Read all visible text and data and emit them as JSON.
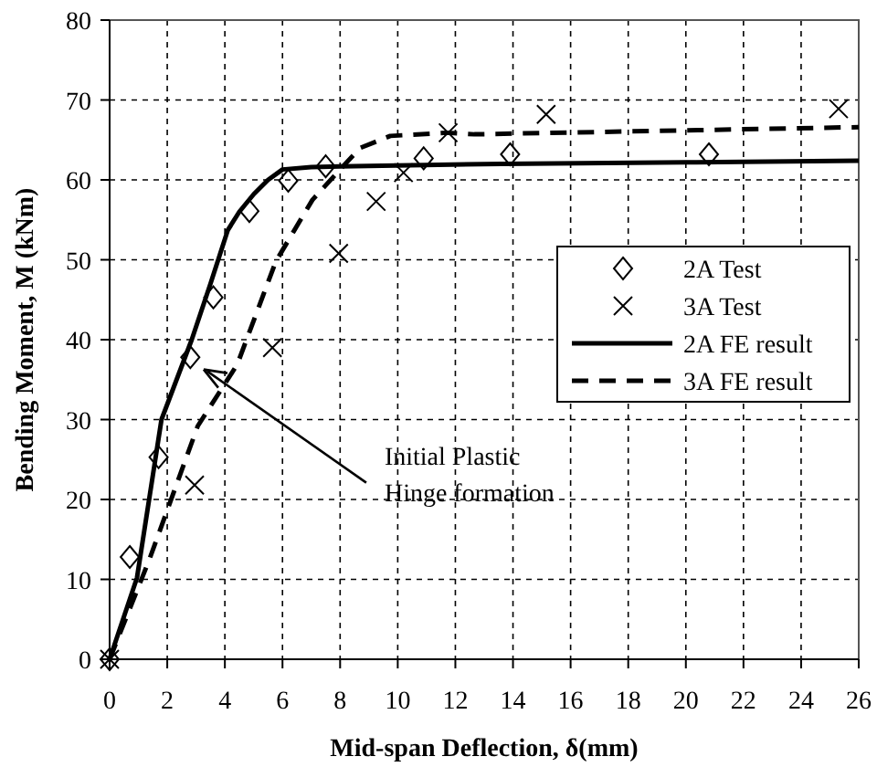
{
  "chart_data": {
    "type": "scatter",
    "xlabel": "Mid-span Deflection, δ(mm)",
    "ylabel": "Bending Moment, M (kNm)",
    "xlim": [
      0,
      26
    ],
    "xticks": [
      0,
      2,
      4,
      6,
      8,
      10,
      12,
      14,
      16,
      18,
      20,
      22,
      24,
      26
    ],
    "ylim": [
      0,
      80
    ],
    "yticks": [
      0,
      10,
      20,
      30,
      40,
      50,
      60,
      70,
      80
    ],
    "grid": true,
    "legend": "right",
    "series": [
      {
        "name": "2A Test",
        "type": "scatter",
        "marker": "diamond",
        "color": "#000000",
        "x": [
          0,
          0.7,
          1.7,
          2.8,
          3.6,
          4.85,
          6.2,
          7.5,
          10.9,
          13.9,
          20.8
        ],
        "values": [
          0,
          12.8,
          25.3,
          37.8,
          45.3,
          56.1,
          59.9,
          61.7,
          62.7,
          63.2,
          63.2
        ]
      },
      {
        "name": "3A Test",
        "type": "scatter",
        "marker": "cross",
        "color": "#000000",
        "x": [
          0,
          2.95,
          5.65,
          7.95,
          9.25,
          10.2,
          11.75,
          15.15,
          25.3
        ],
        "values": [
          0,
          21.8,
          39,
          50.8,
          57.3,
          60.9,
          65.9,
          68.2,
          68.9
        ]
      },
      {
        "name": "2A FE result",
        "type": "line",
        "marker": "none",
        "line_style": "solid",
        "color": "#000000",
        "x": [
          0,
          0.95,
          1.8,
          2.85,
          3.5,
          4.1,
          4.5,
          5,
          5.5,
          6,
          7,
          8,
          13.6,
          20,
          26
        ],
        "values": [
          0,
          10.2,
          30,
          40,
          47,
          53.7,
          56,
          58.2,
          60,
          61.3,
          61.6,
          61.7,
          62,
          62.2,
          62.4
        ]
      },
      {
        "name": "3A FE result",
        "type": "line",
        "marker": "none",
        "line_style": "dashed",
        "color": "#000000",
        "x": [
          0,
          1.37,
          3.06,
          4.43,
          5.77,
          7.04,
          8.1,
          8.7,
          9.74,
          11.7,
          12.66,
          20,
          26
        ],
        "values": [
          0,
          12.4,
          29.2,
          36.9,
          49.8,
          57.5,
          61.7,
          64,
          65.5,
          65.9,
          65.7,
          66.2,
          66.6
        ]
      }
    ],
    "annotations": [
      {
        "text": "Initial Plastic\nHinge formation",
        "x": 3.2,
        "y": 36.5
      }
    ]
  }
}
